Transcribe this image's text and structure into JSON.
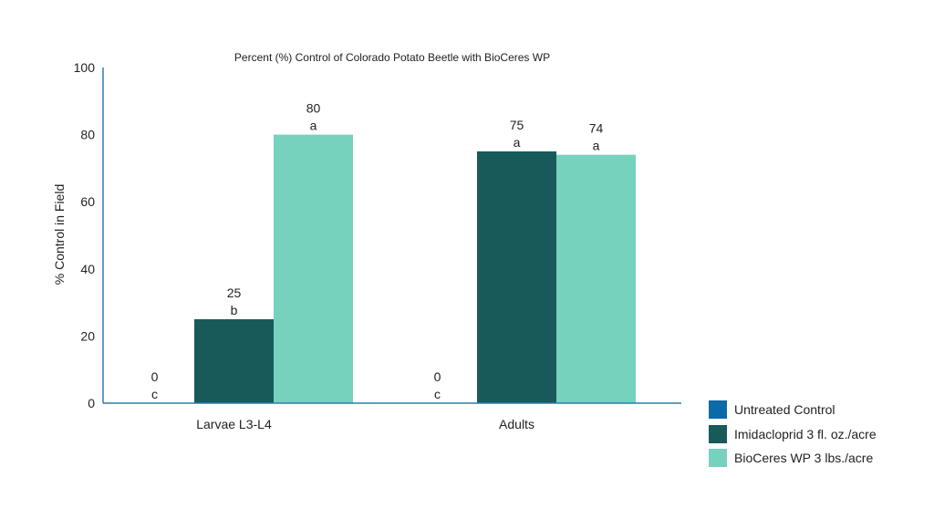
{
  "chart_data": {
    "type": "bar",
    "title": "Percent (%) Control of Colorado Potato Beetle with BioCeres WP",
    "ylabel": "% Control in Field",
    "xlabel": "",
    "ylim": [
      0,
      100
    ],
    "yticks": [
      "0",
      "20",
      "40",
      "60",
      "80",
      "100"
    ],
    "categories": [
      "Larvae L3-L4",
      "Adults"
    ],
    "series": [
      {
        "name": "Untreated Control",
        "color": "#0d6aa8",
        "values": [
          0,
          0
        ],
        "value_labels": [
          "0",
          "0"
        ],
        "letters": [
          "c",
          "c"
        ]
      },
      {
        "name": "Imidacloprid 3 fl. oz./acre",
        "color": "#185a5a",
        "values": [
          25,
          75
        ],
        "value_labels": [
          "25",
          "75"
        ],
        "letters": [
          "b",
          "a"
        ]
      },
      {
        "name": "BioCeres WP 3 lbs./acre",
        "color": "#76d1bd",
        "values": [
          80,
          74
        ],
        "value_labels": [
          "80",
          "74"
        ],
        "letters": [
          "a",
          "a"
        ]
      }
    ],
    "legend_position": "bottom-right",
    "grid": false,
    "axis_color": "#2f7ea6"
  }
}
